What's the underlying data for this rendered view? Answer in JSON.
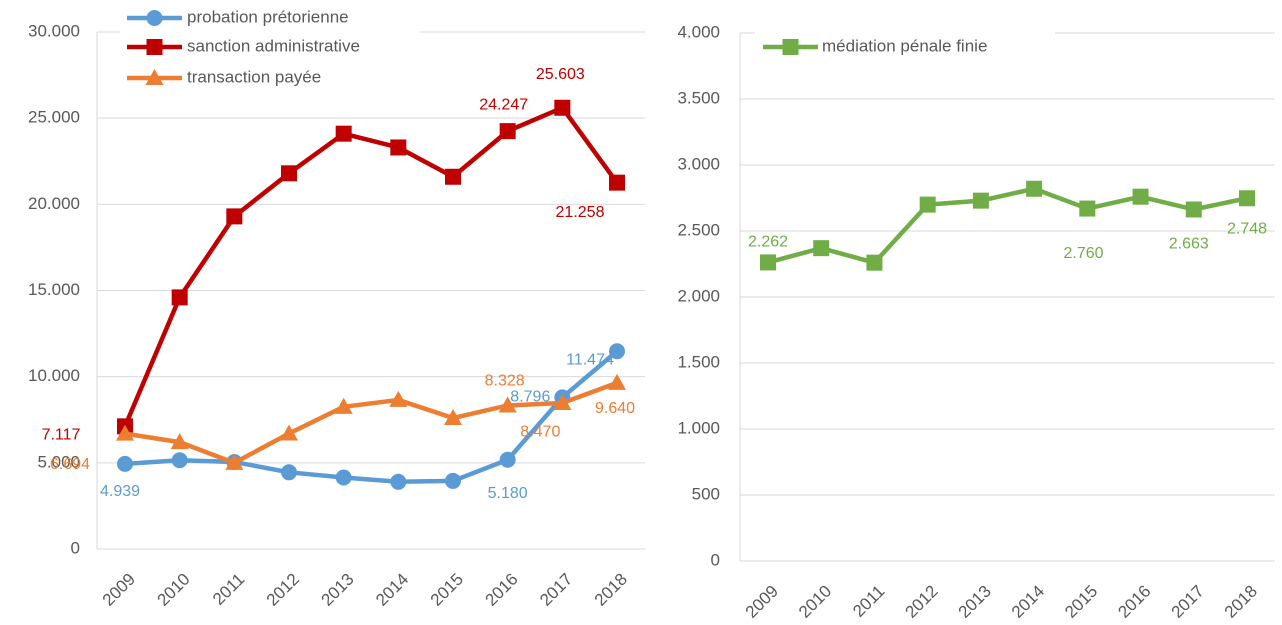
{
  "chart_data": [
    {
      "type": "line",
      "categories": [
        "2009",
        "2010",
        "2011",
        "2012",
        "2013",
        "2014",
        "2015",
        "2016",
        "2017",
        "2018"
      ],
      "ylim": [
        0,
        30000
      ],
      "yticks": [
        0,
        {
          "value": 5000,
          "label": "5.000"
        },
        {
          "value": 10000,
          "label": "10.000"
        },
        {
          "value": 15000,
          "label": "15.000"
        },
        {
          "value": 20000,
          "label": "20.000"
        },
        {
          "value": 25000,
          "label": "25.000"
        },
        {
          "value": 30000,
          "label": "30.000"
        }
      ],
      "grid": true,
      "legend": "top-left",
      "series": [
        {
          "name": "probation prétorienne",
          "color": "#5b9bd5",
          "marker": "circle",
          "values": [
            4939,
            5150,
            5050,
            4450,
            4150,
            3900,
            3950,
            5180,
            8796,
            11474
          ],
          "value_labels": [
            "4.939",
            null,
            null,
            null,
            null,
            null,
            null,
            "5.180",
            "8.796",
            "11.474"
          ]
        },
        {
          "name": "sanction administrative",
          "color": "#c00000",
          "marker": "square",
          "values": [
            7117,
            14600,
            19300,
            21800,
            24100,
            23300,
            21600,
            24247,
            25603,
            21258
          ],
          "value_labels": [
            "7.117",
            null,
            null,
            null,
            null,
            null,
            null,
            "24.247",
            "25.603",
            "21.258"
          ]
        },
        {
          "name": "transaction payée",
          "color": "#ed7d31",
          "marker": "triangle",
          "values": [
            6694,
            6200,
            5000,
            6700,
            8250,
            8650,
            7600,
            8328,
            8470,
            9640
          ],
          "value_labels": [
            "6.694",
            null,
            null,
            null,
            null,
            null,
            null,
            "8.328",
            "8.470",
            "9.640"
          ]
        }
      ]
    },
    {
      "type": "line",
      "categories": [
        "2009",
        "2010",
        "2011",
        "2012",
        "2013",
        "2014",
        "2015",
        "2016",
        "2017",
        "2018"
      ],
      "ylim": [
        0,
        4000
      ],
      "yticks": [
        0,
        500,
        {
          "value": 1000,
          "label": "1.000"
        },
        {
          "value": 1500,
          "label": "1.500"
        },
        {
          "value": 2000,
          "label": "2.000"
        },
        {
          "value": 2500,
          "label": "2.500"
        },
        {
          "value": 3000,
          "label": "3.000"
        },
        {
          "value": 3500,
          "label": "3.500"
        },
        {
          "value": 4000,
          "label": "4.000"
        }
      ],
      "grid": true,
      "legend": "top",
      "series": [
        {
          "name": "médiation pénale finie",
          "color": "#70ad47",
          "marker": "square",
          "values": [
            2262,
            2370,
            2260,
            2700,
            2730,
            2820,
            2670,
            2760,
            2663,
            2748
          ],
          "value_labels": [
            "2.262",
            null,
            null,
            null,
            null,
            null,
            null,
            "2.760",
            "2.663",
            "2.748"
          ]
        }
      ]
    }
  ]
}
